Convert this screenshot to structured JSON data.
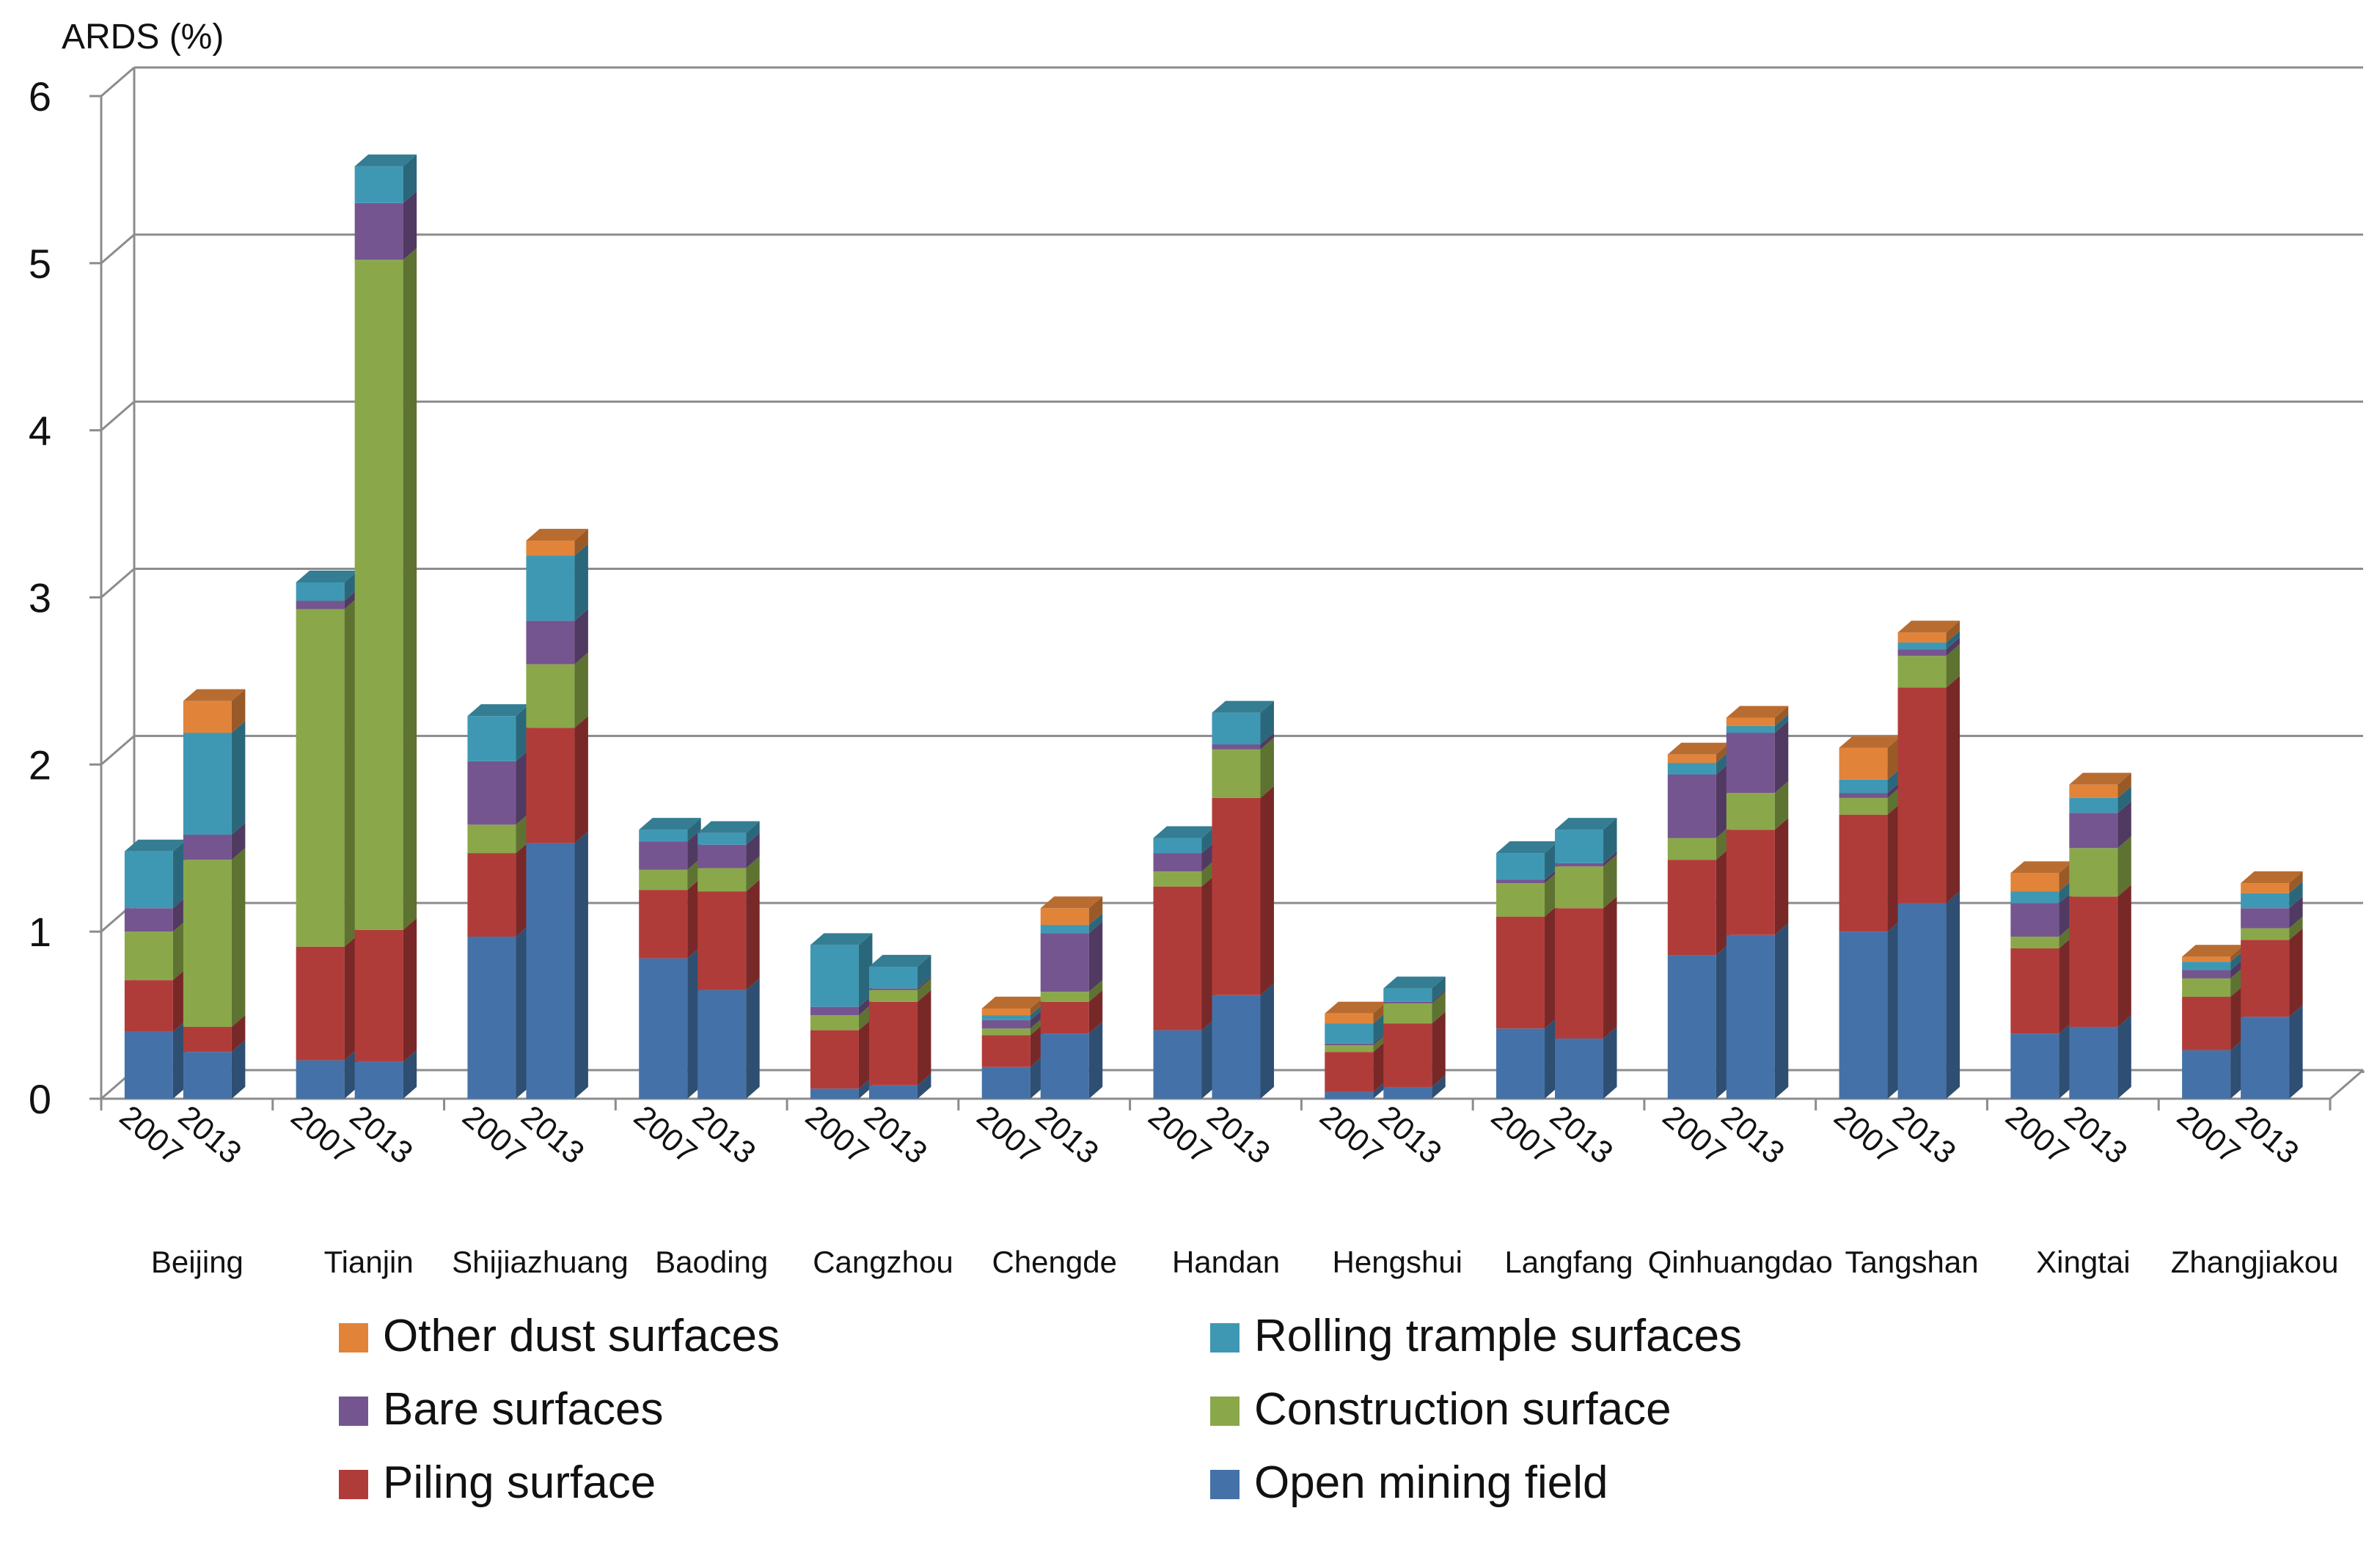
{
  "chart_data": {
    "type": "bar",
    "stacked": true,
    "three_d": true,
    "ylabel": "ARDS (%)",
    "ylim": [
      0,
      6
    ],
    "yticks": [
      0,
      1,
      2,
      3,
      4,
      5,
      6
    ],
    "grid": true,
    "legend_position": "bottom",
    "categories": [
      "Beijing",
      "Tianjin",
      "Shijiazhuang",
      "Baoding",
      "Cangzhou",
      "Chengde",
      "Handan",
      "Hengshui",
      "Langfang",
      "Qinhuangdao",
      "Tangshan",
      "Xingtai",
      "Zhangjiakou"
    ],
    "years": [
      "2007",
      "2013"
    ],
    "series": [
      {
        "name": "Open mining field",
        "color": "#4472a8",
        "values": [
          [
            0.4,
            0.28
          ],
          [
            0.23,
            0.22
          ],
          [
            0.97,
            1.53
          ],
          [
            0.84,
            0.65
          ],
          [
            0.06,
            0.08
          ],
          [
            0.19,
            0.39
          ],
          [
            0.41,
            0.62
          ],
          [
            0.04,
            0.07
          ],
          [
            0.42,
            0.36
          ],
          [
            0.86,
            0.98
          ],
          [
            1.0,
            1.17
          ],
          [
            0.39,
            0.43
          ],
          [
            0.29,
            0.49
          ]
        ]
      },
      {
        "name": "Piling surface",
        "color": "#b03c3a",
        "values": [
          [
            0.31,
            0.15
          ],
          [
            0.68,
            0.79
          ],
          [
            0.5,
            0.69
          ],
          [
            0.41,
            0.59
          ],
          [
            0.35,
            0.5
          ],
          [
            0.19,
            0.19
          ],
          [
            0.86,
            1.18
          ],
          [
            0.24,
            0.38
          ],
          [
            0.67,
            0.78
          ],
          [
            0.57,
            0.63
          ],
          [
            0.7,
            1.29
          ],
          [
            0.51,
            0.78
          ],
          [
            0.32,
            0.46
          ]
        ]
      },
      {
        "name": "Construction surface",
        "color": "#8aa84a",
        "values": [
          [
            0.29,
            1.0
          ],
          [
            2.02,
            4.01
          ],
          [
            0.17,
            0.38
          ],
          [
            0.12,
            0.14
          ],
          [
            0.09,
            0.07
          ],
          [
            0.04,
            0.06
          ],
          [
            0.09,
            0.29
          ],
          [
            0.04,
            0.12
          ],
          [
            0.2,
            0.25
          ],
          [
            0.13,
            0.22
          ],
          [
            0.1,
            0.19
          ],
          [
            0.07,
            0.29
          ],
          [
            0.11,
            0.07
          ]
        ]
      },
      {
        "name": "Bare surfaces",
        "color": "#75558f",
        "values": [
          [
            0.14,
            0.15
          ],
          [
            0.05,
            0.34
          ],
          [
            0.38,
            0.26
          ],
          [
            0.17,
            0.14
          ],
          [
            0.05,
            0.01
          ],
          [
            0.05,
            0.35
          ],
          [
            0.11,
            0.03
          ],
          [
            0.01,
            0.01
          ],
          [
            0.02,
            0.02
          ],
          [
            0.38,
            0.36
          ],
          [
            0.03,
            0.04
          ],
          [
            0.2,
            0.21
          ],
          [
            0.05,
            0.12
          ]
        ]
      },
      {
        "name": "Rolling trample surfaces",
        "color": "#3f98b3",
        "values": [
          [
            0.34,
            0.61
          ],
          [
            0.11,
            0.22
          ],
          [
            0.27,
            0.39
          ],
          [
            0.07,
            0.07
          ],
          [
            0.37,
            0.13
          ],
          [
            0.03,
            0.05
          ],
          [
            0.09,
            0.19
          ],
          [
            0.12,
            0.08
          ],
          [
            0.16,
            0.2
          ],
          [
            0.07,
            0.04
          ],
          [
            0.08,
            0.04
          ],
          [
            0.07,
            0.09
          ],
          [
            0.05,
            0.09
          ]
        ]
      },
      {
        "name": "Other dust surfaces",
        "color": "#e1843a",
        "values": [
          [
            0.0,
            0.19
          ],
          [
            0.0,
            0.0
          ],
          [
            0.0,
            0.09
          ],
          [
            0.0,
            0.0
          ],
          [
            0.0,
            0.0
          ],
          [
            0.04,
            0.1
          ],
          [
            0.0,
            0.0
          ],
          [
            0.06,
            0.0
          ],
          [
            0.0,
            0.0
          ],
          [
            0.05,
            0.05
          ],
          [
            0.19,
            0.06
          ],
          [
            0.11,
            0.08
          ],
          [
            0.03,
            0.06
          ]
        ]
      }
    ],
    "legend": [
      {
        "label": "Other dust surfaces",
        "color": "#e1843a"
      },
      {
        "label": "Rolling trample surfaces",
        "color": "#3f98b3"
      },
      {
        "label": "Bare surfaces",
        "color": "#75558f"
      },
      {
        "label": "Construction surface",
        "color": "#8aa84a"
      },
      {
        "label": "Piling surface",
        "color": "#b03c3a"
      },
      {
        "label": "Open mining field",
        "color": "#4472a8"
      }
    ]
  }
}
